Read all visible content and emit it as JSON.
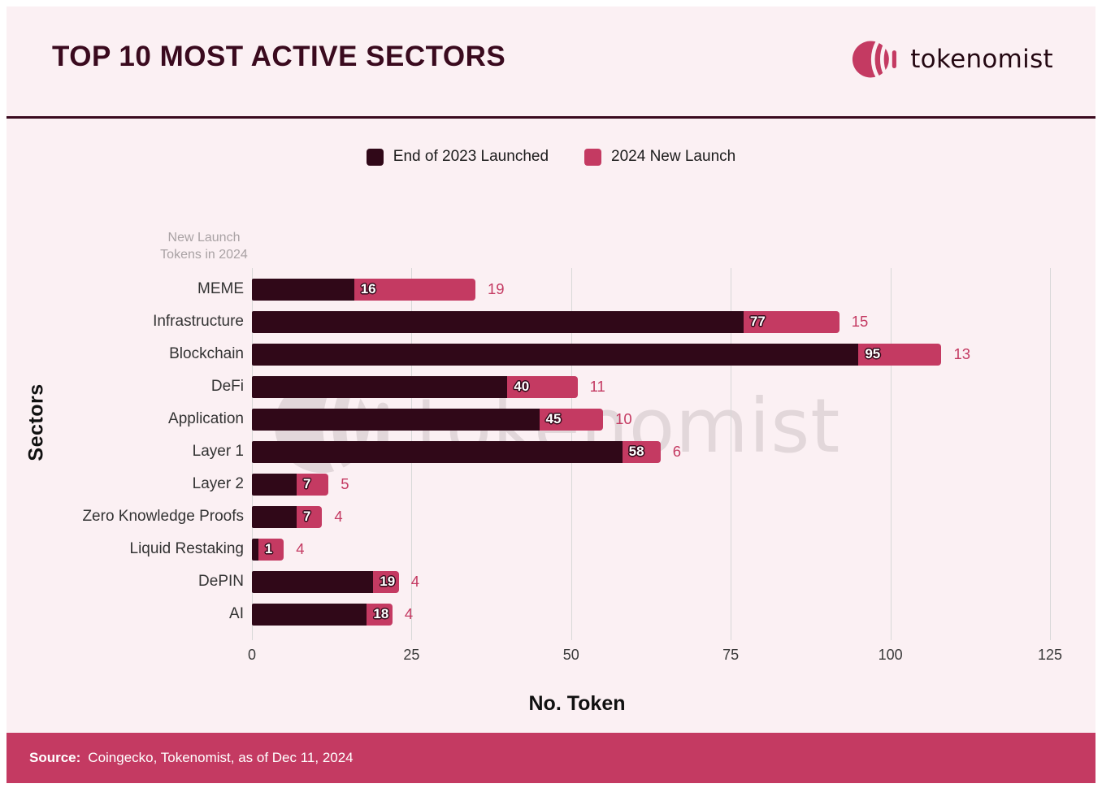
{
  "header": {
    "title": "TOP 10 MOST ACTIVE SECTORS",
    "brand": "tokenomist"
  },
  "legend": [
    {
      "label": "End of 2023 Launched",
      "color": "#300818"
    },
    {
      "label": "2024 New Launch",
      "color": "#c43a62"
    }
  ],
  "chart_data": {
    "type": "bar",
    "orientation": "horizontal",
    "stacked": true,
    "title": "TOP 10 MOST ACTIVE SECTORS",
    "categories": [
      "MEME",
      "Infrastructure",
      "Blockchain",
      "DeFi",
      "Application",
      "Layer 1",
      "Layer 2",
      "Zero Knowledge Proofs",
      "Liquid Restaking",
      "DePIN",
      "AI"
    ],
    "series": [
      {
        "name": "End of 2023 Launched",
        "color": "#300818",
        "values": [
          16,
          77,
          95,
          40,
          45,
          58,
          7,
          7,
          1,
          19,
          18
        ]
      },
      {
        "name": "2024 New Launch",
        "color": "#c43a62",
        "values": [
          19,
          15,
          13,
          11,
          10,
          6,
          5,
          4,
          4,
          4,
          4
        ]
      }
    ],
    "xlabel": "No. Token",
    "ylabel": "Sectors",
    "axis_note": "New Launch\nTokens in 2024",
    "xlim": [
      0,
      125
    ],
    "xticks": [
      0,
      25,
      50,
      75,
      100,
      125
    ],
    "grid": true,
    "legend_position": "top"
  },
  "footer": {
    "source_label": "Source:",
    "source_text": "Coingecko, Tokenomist, as of Dec 11, 2024"
  },
  "icons": {
    "logo": "tokenomist-logo",
    "watermark": "tokenomist-logo-watermark"
  },
  "colors": {
    "dark": "#300818",
    "dark_title": "#3a0a1e",
    "pink": "#c43a62",
    "background": "#fbf0f3",
    "grid": "#d8d8d8",
    "note_gray": "#a9a2a4",
    "watermark": "#cfc3c6"
  }
}
